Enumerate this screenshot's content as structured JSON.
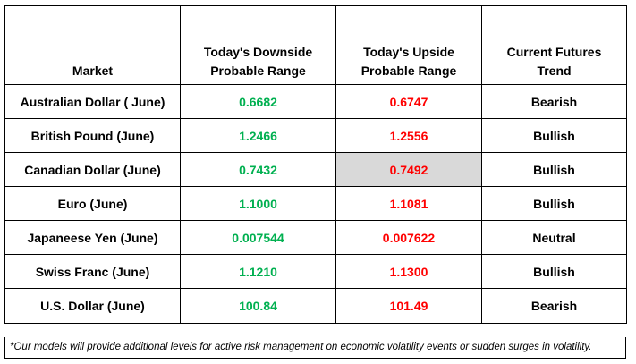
{
  "headers": {
    "market": "Market",
    "downside_line1": "Today's Downside",
    "downside_line2": "Probable Range",
    "upside_line1": "Today's Upside",
    "upside_line2": "Probable Range",
    "trend_line1": "Current Futures",
    "trend_line2": "Trend"
  },
  "rows": [
    {
      "market": "Australian Dollar ( June)",
      "downside": "0.6682",
      "upside": "0.6747",
      "trend": "Bearish"
    },
    {
      "market": "British Pound (June)",
      "downside": "1.2466",
      "upside": "1.2556",
      "trend": "Bullish"
    },
    {
      "market": "Canadian Dollar (June)",
      "downside": "0.7432",
      "upside": "0.7492",
      "trend": "Bullish"
    },
    {
      "market": "Euro (June)",
      "downside": "1.1000",
      "upside": "1.1081",
      "trend": "Bullish"
    },
    {
      "market": "Japaneese Yen (June)",
      "downside": "0.007544",
      "upside": "0.007622",
      "trend": "Neutral"
    },
    {
      "market": "Swiss Franc (June)",
      "downside": "1.1210",
      "upside": "1.1300",
      "trend": "Bullish"
    },
    {
      "market": "U.S. Dollar (June)",
      "downside": "100.84",
      "upside": "101.49",
      "trend": "Bearish"
    }
  ],
  "footnote": "*Our models will provide additional levels for active risk management on economic volatility events or sudden surges in volatility.",
  "colors": {
    "downside": "#00b050",
    "upside": "#ff0000",
    "highlight_cell": "#d9d9d9"
  }
}
